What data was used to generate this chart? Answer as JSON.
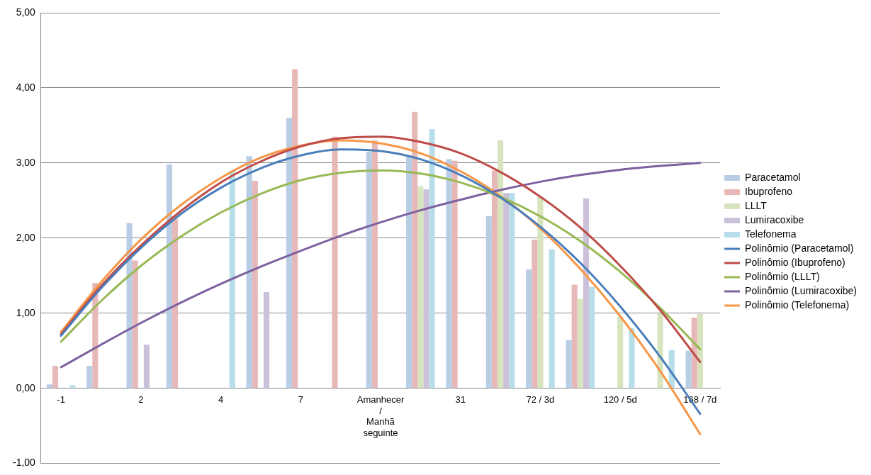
{
  "chart_data": {
    "type": "bar",
    "categories": [
      "-1",
      null,
      "2",
      null,
      "4",
      null,
      "7",
      null,
      "Amanhecer\n/\nManhã\nseguinte",
      null,
      "31",
      null,
      "72 / 3d",
      null,
      "120 / 5d",
      null,
      "168 / 7d"
    ],
    "series": [
      {
        "name": "Paracetamol",
        "color": "#b9cde5",
        "values": [
          0.05,
          0.3,
          2.2,
          2.98,
          null,
          3.09,
          3.6,
          null,
          3.15,
          3.1,
          3.05,
          2.29,
          1.58,
          0.64,
          null,
          null,
          0.5
        ]
      },
      {
        "name": "Ibuprofeno",
        "color": "#e6b9b8",
        "values": [
          0.3,
          1.4,
          1.7,
          2.25,
          null,
          2.76,
          4.25,
          3.35,
          3.3,
          3.68,
          3.03,
          2.9,
          1.98,
          1.38,
          null,
          null,
          0.94
        ]
      },
      {
        "name": "LLLT",
        "color": "#d7e4bd",
        "values": [
          null,
          null,
          null,
          null,
          null,
          null,
          null,
          null,
          null,
          2.69,
          null,
          3.3,
          2.55,
          1.19,
          0.95,
          1.0,
          0.99
        ]
      },
      {
        "name": "Lumiracoxibe",
        "color": "#ccc1da",
        "values": [
          null,
          null,
          0.58,
          null,
          null,
          1.28,
          null,
          null,
          null,
          2.65,
          null,
          2.6,
          null,
          2.53,
          null,
          null,
          null
        ]
      },
      {
        "name": "Telefonema",
        "color": "#b7dee8",
        "values": [
          0.04,
          null,
          null,
          null,
          2.9,
          null,
          null,
          null,
          null,
          3.45,
          null,
          2.6,
          1.85,
          1.35,
          0.8,
          0.51,
          null
        ]
      },
      {
        "name": "Polinômio (Paracetamol)",
        "type": "line",
        "color": "#4a7ebb",
        "values": [
          0.7,
          1.33,
          1.87,
          2.32,
          2.67,
          2.93,
          3.1,
          3.18,
          3.16,
          3.05,
          2.84,
          2.54,
          2.15,
          1.67,
          1.09,
          0.42,
          -0.34
        ]
      },
      {
        "name": "Polinômio (Ibuprofeno)",
        "type": "line",
        "color": "#be4b48",
        "values": [
          0.72,
          1.36,
          1.9,
          2.36,
          2.74,
          3.02,
          3.22,
          3.33,
          3.35,
          3.28,
          3.13,
          2.88,
          2.55,
          2.14,
          1.63,
          1.04,
          0.35
        ]
      },
      {
        "name": "Polinômio (LLLT)",
        "type": "line",
        "color": "#98b954",
        "values": [
          0.62,
          1.16,
          1.63,
          2.02,
          2.34,
          2.59,
          2.77,
          2.87,
          2.9,
          2.86,
          2.74,
          2.55,
          2.29,
          1.96,
          1.55,
          1.07,
          0.52
        ]
      },
      {
        "name": "Polinômio (Lumiracoxibe)",
        "type": "line",
        "color": "#7d60a0",
        "values": [
          0.28,
          0.58,
          0.87,
          1.14,
          1.39,
          1.62,
          1.83,
          2.03,
          2.21,
          2.37,
          2.51,
          2.64,
          2.75,
          2.84,
          2.91,
          2.96,
          3.0
        ]
      },
      {
        "name": "Polinômio (Telefonema)",
        "type": "line",
        "color": "#f79646",
        "values": [
          0.75,
          1.41,
          1.98,
          2.44,
          2.8,
          3.07,
          3.23,
          3.3,
          3.26,
          3.13,
          2.89,
          2.56,
          2.13,
          1.59,
          0.96,
          0.23,
          -0.61
        ]
      }
    ],
    "ylim": [
      -1,
      5
    ],
    "yticks": [
      {
        "value": -1,
        "label": "-1,00"
      },
      {
        "value": 0,
        "label": "0,00"
      },
      {
        "value": 1,
        "label": "1,00"
      },
      {
        "value": 2,
        "label": "2,00"
      },
      {
        "value": 3,
        "label": "3,00"
      },
      {
        "value": 4,
        "label": "4,00"
      },
      {
        "value": 5,
        "label": "5,00"
      }
    ],
    "grid": "y",
    "legend": "right",
    "marker": "none",
    "line_style": "solid"
  }
}
